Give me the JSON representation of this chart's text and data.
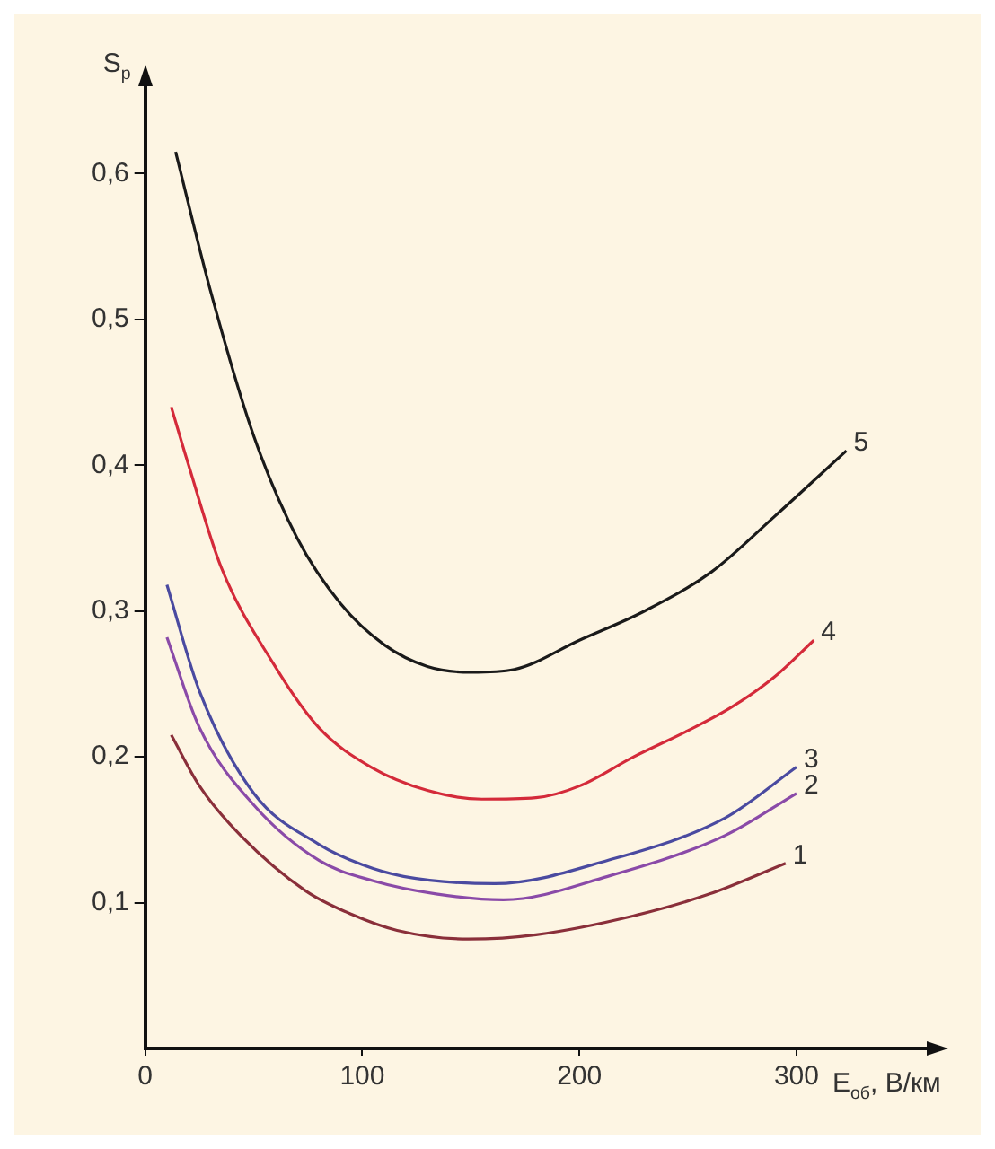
{
  "chart_data": {
    "type": "line",
    "xlabel": "E$_{об}$, В/км",
    "ylabel": "S$_{р}$",
    "xlim": [
      0,
      360
    ],
    "ylim": [
      0,
      0.66
    ],
    "xticks": [
      0,
      100,
      200,
      300
    ],
    "yticks": [
      {
        "value": 0.1,
        "label": "0,1"
      },
      {
        "value": 0.2,
        "label": "0,2"
      },
      {
        "value": 0.3,
        "label": "0,3"
      },
      {
        "value": 0.4,
        "label": "0,4"
      },
      {
        "value": 0.5,
        "label": "0,5"
      },
      {
        "value": 0.6,
        "label": "0,6"
      }
    ],
    "marker": "none",
    "line_style": "solid",
    "series": [
      {
        "name": "1",
        "color": "#8a2f3a",
        "x": [
          12,
          25,
          44,
          74,
          95,
          116,
          149,
          180,
          225,
          260,
          295
        ],
        "values": [
          0.215,
          0.18,
          0.146,
          0.108,
          0.092,
          0.081,
          0.075,
          0.078,
          0.091,
          0.106,
          0.127
        ]
      },
      {
        "name": "2",
        "color": "#8a4aa8",
        "x": [
          10,
          25,
          50,
          80,
          105,
          134,
          165,
          213,
          267,
          300
        ],
        "values": [
          0.282,
          0.22,
          0.167,
          0.129,
          0.115,
          0.106,
          0.102,
          0.118,
          0.146,
          0.175
        ]
      },
      {
        "name": "3",
        "color": "#4a4aa0",
        "x": [
          10,
          25,
          50,
          80,
          100,
          119,
          161,
          213,
          267,
          300
        ],
        "values": [
          0.318,
          0.245,
          0.175,
          0.14,
          0.126,
          0.118,
          0.113,
          0.129,
          0.158,
          0.193
        ]
      },
      {
        "name": "4",
        "color": "#d42a3a",
        "x": [
          12,
          20,
          35,
          59,
          80,
          104,
          130,
          155,
          180,
          200,
          225,
          250,
          270,
          290,
          308
        ],
        "values": [
          0.44,
          0.4,
          0.33,
          0.264,
          0.22,
          0.193,
          0.177,
          0.171,
          0.172,
          0.18,
          0.2,
          0.218,
          0.234,
          0.255,
          0.28
        ]
      },
      {
        "name": "5",
        "color": "#1a1a1a",
        "x": [
          14,
          30,
          50,
          70,
          90,
          110,
          130,
          150,
          170,
          200,
          230,
          261,
          290,
          323
        ],
        "values": [
          0.615,
          0.52,
          0.42,
          0.35,
          0.305,
          0.277,
          0.262,
          0.258,
          0.26,
          0.28,
          0.3,
          0.327,
          0.365,
          0.41
        ]
      }
    ]
  }
}
